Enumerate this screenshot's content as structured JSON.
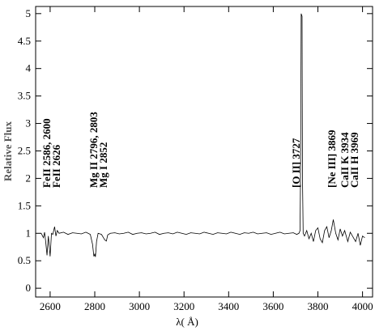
{
  "chart_data": {
    "type": "line",
    "xlabel": "λ( Å)",
    "ylabel": "Relative Flux",
    "xlim": [
      2535,
      4045
    ],
    "ylim": [
      -0.16,
      5.13
    ],
    "xticks": [
      2600,
      2800,
      3000,
      3200,
      3400,
      3600,
      3800,
      4000
    ],
    "yticks": [
      0,
      0.5,
      1,
      1.5,
      2,
      2.5,
      3,
      3.5,
      4,
      4.5,
      5
    ],
    "annotations": [
      "FeII 2586, 2600",
      "FeII 2626",
      "Mg II 2796, 2803",
      "Mg I 2852",
      "[O II] 3727",
      "[Ne III] 3869",
      "CaII K 3934",
      "CaII H 3969"
    ],
    "series": [
      {
        "color": "#000000",
        "x": [
          2560,
          2570,
          2575,
          2580,
          2586,
          2592,
          2600,
          2606,
          2612,
          2620,
          2626,
          2632,
          2640,
          2660,
          2680,
          2700,
          2720,
          2740,
          2760,
          2770,
          2780,
          2790,
          2796,
          2800,
          2803,
          2808,
          2815,
          2830,
          2845,
          2852,
          2858,
          2870,
          2890,
          2910,
          2930,
          2950,
          2970,
          2990,
          3010,
          3030,
          3050,
          3070,
          3090,
          3110,
          3130,
          3150,
          3170,
          3190,
          3210,
          3230,
          3250,
          3270,
          3290,
          3310,
          3330,
          3350,
          3370,
          3390,
          3410,
          3430,
          3450,
          3470,
          3490,
          3510,
          3530,
          3550,
          3570,
          3590,
          3610,
          3630,
          3650,
          3670,
          3690,
          3705,
          3715,
          3720,
          3723,
          3725,
          3729,
          3731,
          3734,
          3740,
          3750,
          3760,
          3770,
          3780,
          3790,
          3800,
          3810,
          3820,
          3830,
          3840,
          3850,
          3860,
          3869,
          3880,
          3890,
          3900,
          3910,
          3920,
          3934,
          3945,
          3955,
          3969,
          3980,
          3990,
          4000,
          4010
        ],
        "values": [
          1.0,
          0.92,
          1.02,
          0.85,
          0.6,
          0.95,
          0.58,
          1.0,
          0.98,
          1.12,
          0.95,
          1.05,
          1.0,
          1.02,
          0.98,
          1.01,
          1.0,
          0.99,
          1.02,
          1.0,
          0.98,
          0.8,
          0.58,
          0.62,
          0.57,
          0.85,
          1.0,
          0.98,
          0.88,
          0.86,
          0.97,
          1.0,
          1.01,
          0.99,
          1.0,
          1.02,
          0.98,
          1.0,
          1.01,
          0.99,
          1.0,
          1.02,
          0.98,
          1.0,
          1.01,
          0.99,
          1.02,
          1.0,
          0.98,
          1.01,
          1.0,
          0.99,
          1.02,
          1.0,
          0.98,
          1.01,
          1.0,
          0.99,
          1.02,
          1.0,
          0.98,
          1.01,
          1.0,
          1.02,
          0.99,
          1.0,
          1.01,
          0.98,
          1.0,
          1.02,
          0.99,
          1.0,
          1.01,
          0.98,
          1.0,
          1.05,
          2.5,
          5.0,
          4.95,
          2.0,
          1.0,
          0.95,
          1.05,
          0.9,
          1.0,
          0.85,
          1.05,
          1.1,
          0.9,
          0.83,
          1.05,
          1.12,
          0.92,
          1.05,
          1.25,
          1.0,
          0.88,
          1.08,
          0.95,
          1.05,
          0.85,
          1.02,
          0.95,
          0.85,
          1.0,
          0.78,
          0.95,
          0.92
        ]
      }
    ]
  }
}
